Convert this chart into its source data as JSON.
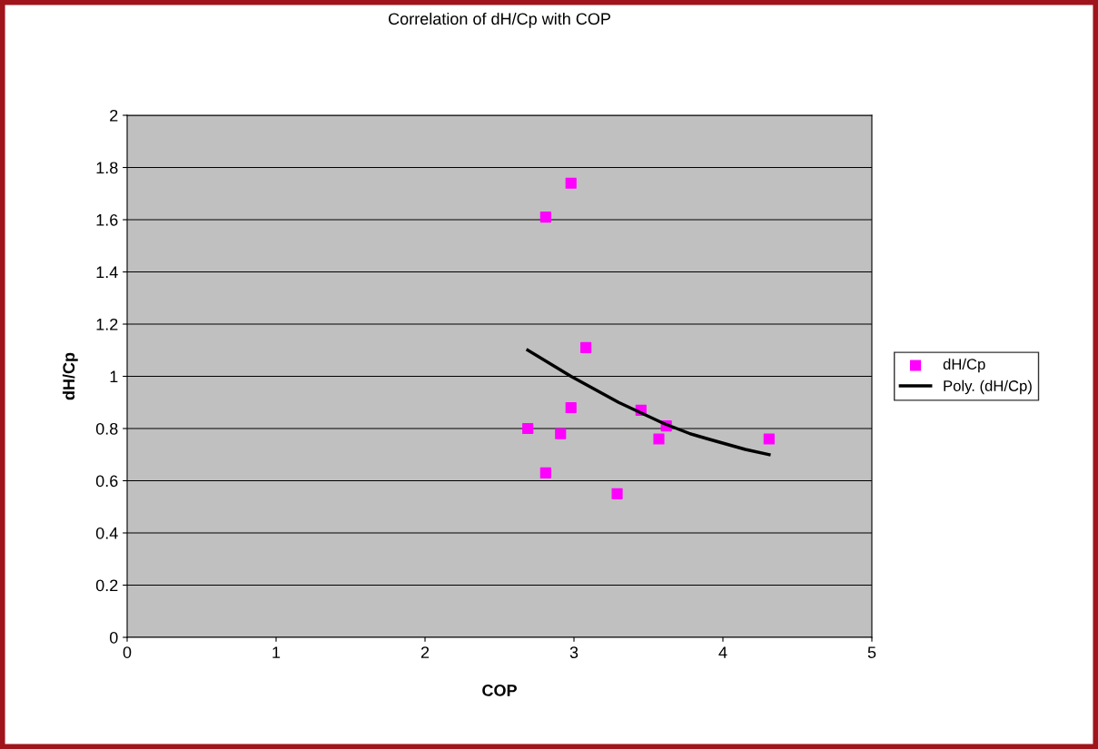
{
  "chart_data": {
    "type": "scatter",
    "title": "Correlation of dH/Cp with COP",
    "xlabel": "COP",
    "ylabel": "dH/Cp",
    "xlim": [
      0,
      5
    ],
    "xticks": [
      0,
      1,
      2,
      3,
      4,
      5
    ],
    "ylim": [
      0,
      2
    ],
    "yticks": [
      0,
      0.2,
      0.4,
      0.6,
      0.8,
      1,
      1.2,
      1.4,
      1.6,
      1.8,
      2
    ],
    "grid": "y",
    "legend": "right",
    "marker": "square",
    "series": [
      {
        "name": "dH/Cp",
        "color": "#ff00ff",
        "x": [
          2.69,
          2.81,
          2.98,
          2.81,
          2.91,
          2.98,
          3.08,
          3.29,
          3.45,
          3.57,
          3.62,
          4.31
        ],
        "values": [
          0.8,
          1.61,
          1.74,
          0.63,
          0.78,
          0.88,
          1.11,
          0.55,
          0.87,
          0.76,
          0.81,
          0.76
        ]
      },
      {
        "name": "Poly. (dH/Cp)",
        "type": "line",
        "color": "#000000",
        "marker": "none",
        "line_style": "solid",
        "x": [
          2.69,
          2.98,
          3.3,
          3.45,
          3.6,
          3.78,
          3.9,
          4.15,
          4.31
        ],
        "values": [
          1.1,
          1.0,
          0.9,
          0.86,
          0.82,
          0.78,
          0.76,
          0.72,
          0.7
        ]
      }
    ]
  }
}
